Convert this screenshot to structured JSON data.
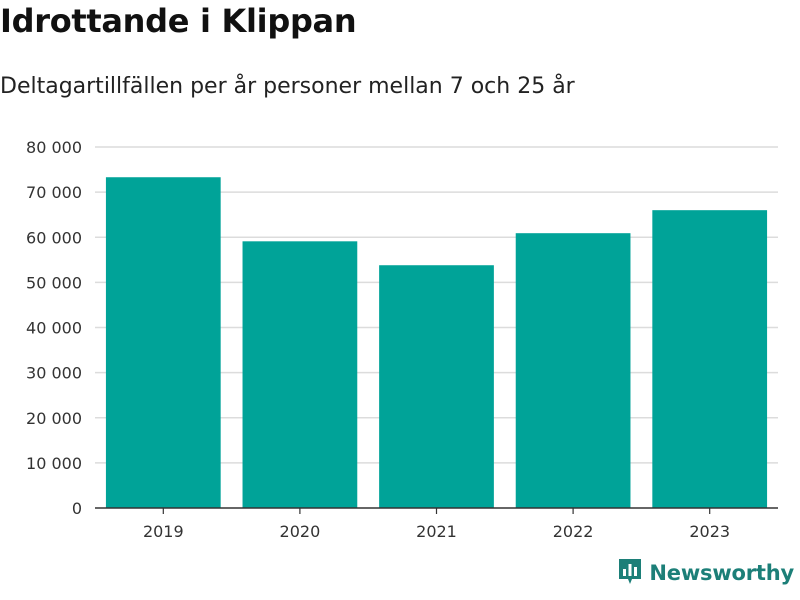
{
  "title": "Idrottande i Klippan",
  "subtitle": "Deltagartillfällen per år personer mellan 7 och 25 år",
  "brand": {
    "name": "Newsworthy",
    "icon": "newsworthy-logo-icon"
  },
  "colors": {
    "bar": "#00a398",
    "grid": "#dcdcdc",
    "axis": "#333333",
    "brand": "#1c7f78"
  },
  "chart_data": {
    "type": "bar",
    "title": "Idrottande i Klippan",
    "subtitle": "Deltagartillfällen per år personer mellan 7 och 25 år",
    "xlabel": "",
    "ylabel": "",
    "categories": [
      "2019",
      "2020",
      "2021",
      "2022",
      "2023"
    ],
    "values": [
      73300,
      59100,
      53800,
      60900,
      66000
    ],
    "ylim": [
      0,
      80000
    ],
    "yticks": [
      0,
      10000,
      20000,
      30000,
      40000,
      50000,
      60000,
      70000,
      80000
    ],
    "ytick_labels": [
      "0",
      "10 000",
      "20 000",
      "30 000",
      "40 000",
      "50 000",
      "60 000",
      "70 000",
      "80 000"
    ],
    "grid": true,
    "legend": false
  }
}
